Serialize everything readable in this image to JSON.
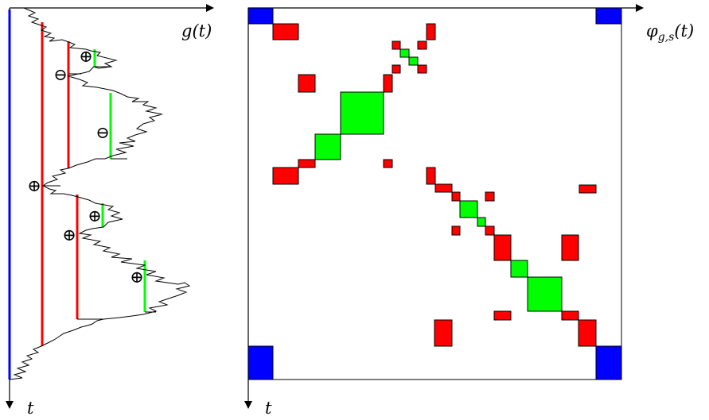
{
  "left_panel": {
    "axis_label_x": "g(t)",
    "axis_label_y": "t",
    "marker_plus": "⊕",
    "marker_minus": "⊖"
  },
  "right_panel": {
    "axis_label_x_main": "φ",
    "axis_label_x_sub": "g,s",
    "axis_label_x_arg": "(t)",
    "axis_label_y": "t"
  },
  "colors": {
    "axis": "#000000",
    "blue": "#0000ff",
    "red": "#ff0000",
    "green": "#00ff00",
    "path": "#000000"
  }
}
